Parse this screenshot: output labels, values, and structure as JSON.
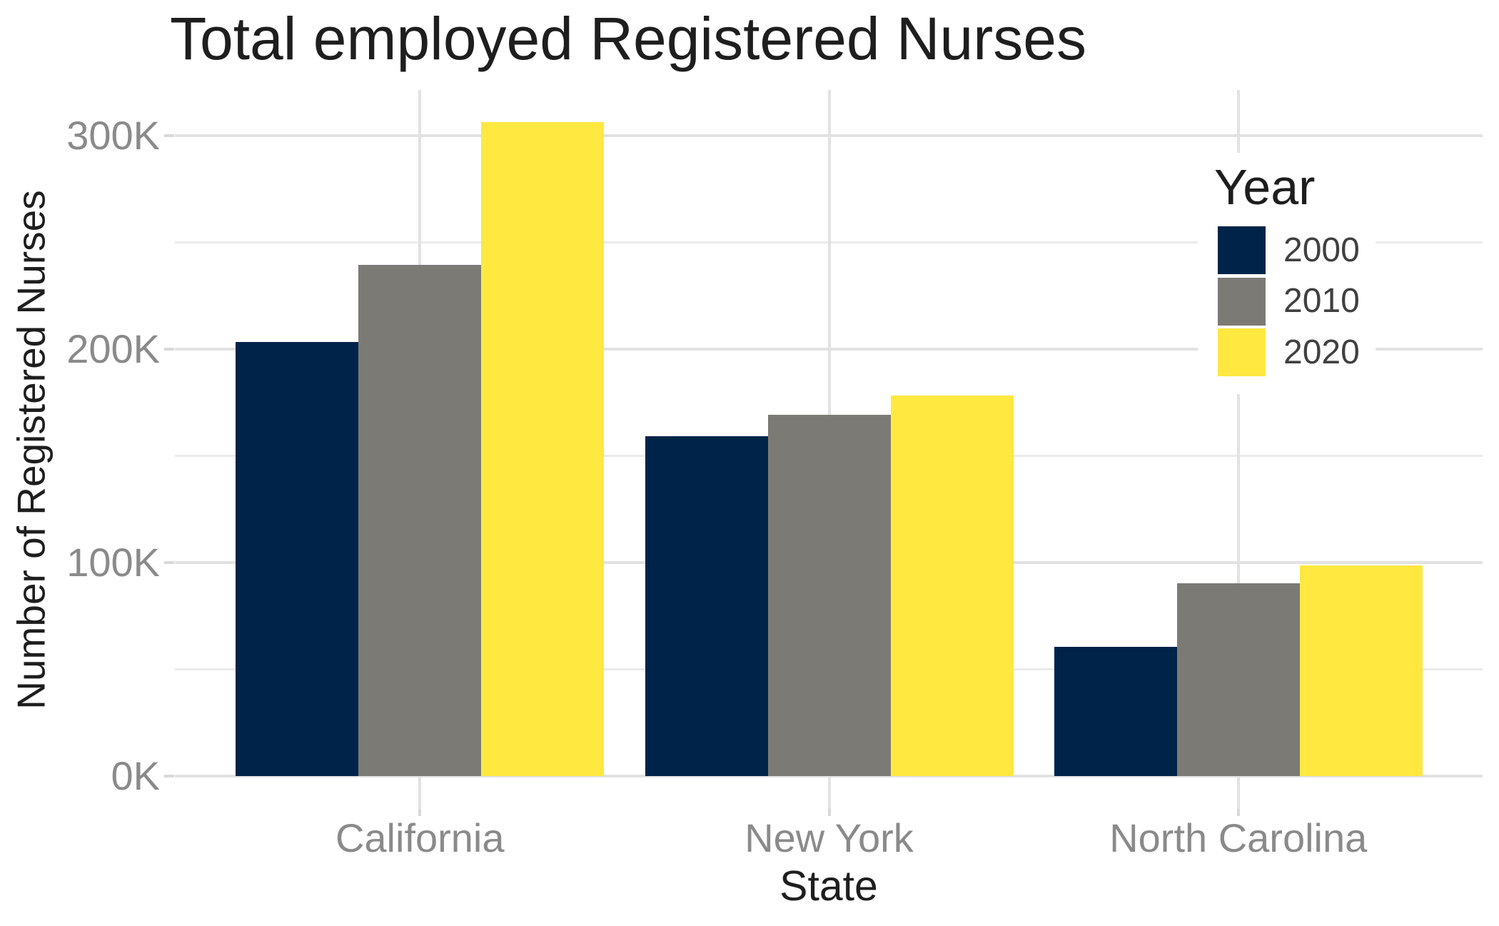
{
  "title": "Total employed Registered Nurses",
  "x_axis": {
    "title": "State",
    "categories": [
      "California",
      "New York",
      "North Carolina"
    ]
  },
  "y_axis": {
    "title": "Number of Registered Nurses",
    "tick_labels": [
      "0K",
      "100K",
      "200K",
      "300K"
    ],
    "tick_values": [
      0,
      100,
      200,
      300
    ],
    "minor_tick_values": [
      50,
      150,
      250
    ]
  },
  "legend": {
    "title": "Year"
  },
  "chart_data": {
    "type": "bar",
    "categories": [
      "California",
      "New York",
      "North Carolina"
    ],
    "series": [
      {
        "name": "2000",
        "color": "#002449",
        "values": [
          203.3,
          159.2,
          60.5
        ]
      },
      {
        "name": "2010",
        "color": "#7c7a75",
        "values": [
          239.5,
          169.2,
          90.3
        ]
      },
      {
        "name": "2020",
        "color": "#ffe840",
        "values": [
          306.4,
          178.3,
          98.7
        ]
      }
    ],
    "unit": "thousands",
    "title": "Total employed Registered Nurses",
    "xlabel": "State",
    "ylabel": "Number of Registered Nurses",
    "ylim": [
      -15.3,
      321.4
    ],
    "grid": true,
    "legend_position": "upper-right-inside"
  },
  "colors": {
    "background": "#ffffff",
    "grid_major": "#e2e2e2",
    "grid_minor": "#ebebeb",
    "tick_mark": "#d9d9d9",
    "title_text": "#1e1e1e",
    "axis_label_text": "#8a8a8a",
    "legend_label_text": "#404040"
  }
}
